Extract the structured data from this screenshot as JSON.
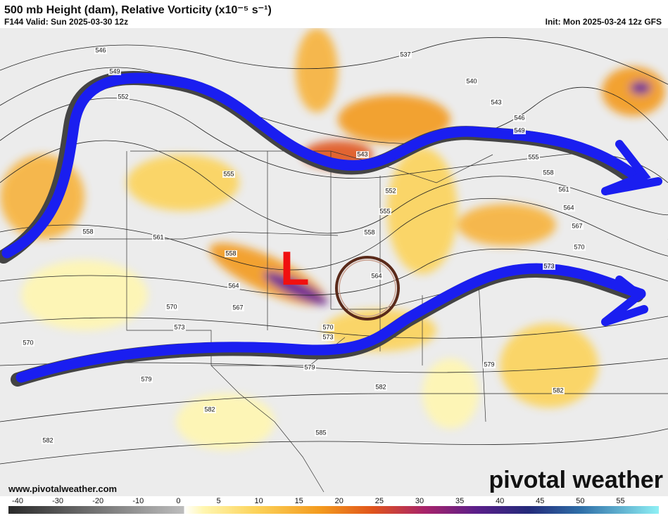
{
  "header": {
    "title": "500 mb Height (dam), Relative Vorticity (x10⁻⁵ s⁻¹)",
    "valid": "F144 Valid: Sun 2025-03-30 12z",
    "init": "Init: Mon 2025-03-24 12z GFS"
  },
  "map": {
    "low_marker": "L",
    "contour_labels": [
      "546",
      "549",
      "552",
      "555",
      "558",
      "561",
      "558",
      "564",
      "567",
      "570",
      "573",
      "570",
      "579",
      "579",
      "582",
      "585",
      "582",
      "582",
      "582",
      "579",
      "573",
      "570",
      "567",
      "564",
      "561",
      "558",
      "555",
      "552",
      "555",
      "558",
      "564",
      "570",
      "573",
      "537",
      "540",
      "543",
      "546",
      "549",
      "543"
    ]
  },
  "footer": {
    "website": "www.pivotalweather.com",
    "logo": "pivotal weather"
  },
  "colorbar": {
    "ticks": [
      -40,
      -30,
      -20,
      -10,
      0,
      5,
      10,
      15,
      20,
      25,
      30,
      35,
      40,
      45,
      50,
      55
    ]
  }
}
